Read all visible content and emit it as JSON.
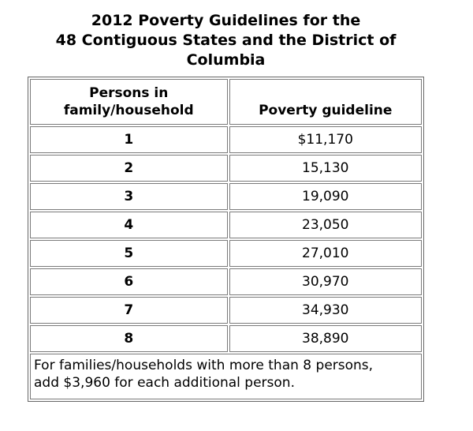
{
  "title": "2012 Poverty Guidelines for the\n48 Contiguous States and the District of\nColumbia",
  "table": {
    "columns": [
      "Persons in\nfamily/household",
      "Poverty guideline"
    ],
    "rows": [
      {
        "persons": "1",
        "guideline": "$11,170"
      },
      {
        "persons": "2",
        "guideline": "15,130"
      },
      {
        "persons": "3",
        "guideline": "19,090"
      },
      {
        "persons": "4",
        "guideline": "23,050"
      },
      {
        "persons": "5",
        "guideline": "27,010"
      },
      {
        "persons": "6",
        "guideline": "30,970"
      },
      {
        "persons": "7",
        "guideline": "34,930"
      },
      {
        "persons": "8",
        "guideline": "38,890"
      }
    ],
    "footnote": "For families/households with more than 8 persons,\nadd $3,960 for each additional person."
  },
  "colors": {
    "background": "#ffffff",
    "text": "#000000",
    "table_border": "#666666",
    "cell_border": "#7a7a7a"
  }
}
